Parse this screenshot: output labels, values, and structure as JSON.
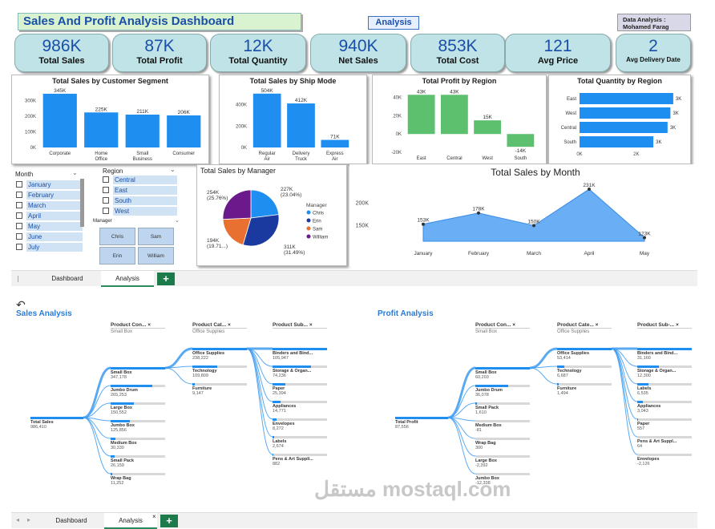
{
  "dashboard": {
    "title": "Sales And Profit  Analysis Dashboard",
    "nav_button": "Analysis",
    "author_line1": "Data Analysis :",
    "author_line2": "Mohamed Farag",
    "kpis": [
      {
        "value": "986K",
        "label": "Total Sales"
      },
      {
        "value": "87K",
        "label": "Total Profit"
      },
      {
        "value": "12K",
        "label": "Total Quantity"
      },
      {
        "value": "940K",
        "label": "Net Sales"
      },
      {
        "value": "853K",
        "label": "Total Cost"
      },
      {
        "value": "121",
        "label": "Avg  Price"
      },
      {
        "value": "2",
        "label": "Avg  Delivery Date"
      }
    ],
    "slicers": {
      "month_title": "Month",
      "months": [
        "January",
        "February",
        "March",
        "April",
        "May",
        "June",
        "July"
      ],
      "region_title": "Region",
      "regions": [
        "Central",
        "East",
        "South",
        "West"
      ],
      "manager_title": "Manager",
      "managers": [
        "Chris",
        "Sam",
        "Erin",
        "William"
      ]
    },
    "tabs": {
      "dashboard": "Dashboard",
      "analysis": "Analysis",
      "add": "+"
    }
  },
  "chart_data": [
    {
      "type": "bar",
      "title": "Total Sales by Customer Segment",
      "categories": [
        "Corporate",
        "Home Office",
        "Small Business",
        "Consumer"
      ],
      "values": [
        345,
        225,
        211,
        206
      ],
      "data_labels": [
        "345K",
        "225K",
        "211K",
        "206K"
      ],
      "ytick_labels": [
        "0K",
        "100K",
        "200K",
        "300K"
      ],
      "ylim": [
        0,
        350
      ]
    },
    {
      "type": "bar",
      "title": "Total Sales by Ship Mode",
      "categories": [
        "Regular Air",
        "Delivery Truck",
        "Express Air"
      ],
      "values": [
        504,
        412,
        71
      ],
      "data_labels": [
        "504K",
        "412K",
        "71K"
      ],
      "ytick_labels": [
        "0K",
        "200K",
        "400K"
      ],
      "ylim": [
        0,
        510
      ]
    },
    {
      "type": "bar",
      "title": "Total Profit by Region",
      "categories": [
        "East",
        "Central",
        "West",
        "South"
      ],
      "values": [
        43,
        43,
        15,
        -14
      ],
      "data_labels": [
        "43K",
        "43K",
        "15K",
        "-14K"
      ],
      "ytick_labels": [
        "-20K",
        "0K",
        "20K",
        "40K"
      ],
      "ylim": [
        -20,
        45
      ]
    },
    {
      "type": "bar",
      "orientation": "horizontal",
      "title": "Total Quantity by Region",
      "categories": [
        "East",
        "West",
        "Central",
        "South"
      ],
      "values": [
        3.3,
        3.2,
        3.1,
        2.6
      ],
      "data_labels": [
        "3K",
        "3K",
        "3K",
        "3K"
      ],
      "xtick_labels": [
        "0K",
        "2K"
      ],
      "xlim": [
        0,
        3.5
      ]
    },
    {
      "type": "pie",
      "title": "Total Sales by Manager",
      "legend_title": "Manager",
      "legend_position": "right",
      "labels": [
        "Chris",
        "Erin",
        "Sam",
        "William"
      ],
      "values": [
        227,
        311,
        194,
        254
      ],
      "slice_labels": [
        "227K (23.04%)",
        "311K (31.49%)",
        "194K (19.71...)",
        "254K (25.76%)"
      ],
      "colors": [
        "#1f8ef1",
        "#1a3aa0",
        "#e87030",
        "#6a1a8a"
      ]
    },
    {
      "type": "area",
      "title": "Total Sales by Month",
      "categories": [
        "January",
        "February",
        "March",
        "April",
        "May"
      ],
      "values": [
        153,
        178,
        150,
        231,
        123
      ],
      "data_labels": [
        "153K",
        "178K",
        "150K",
        "231K",
        "123K"
      ],
      "ytick_labels": [
        "150K",
        "200K"
      ],
      "ylim": [
        115,
        240
      ]
    }
  ],
  "analysis": {
    "sales_title": "Sales Analysis",
    "profit_title": "Profit Analysis",
    "sales_tree": {
      "root": {
        "label": "Total Sales",
        "value": "986,410"
      },
      "col1": {
        "header": "Product Con...",
        "sub": "Small Box"
      },
      "col2": {
        "header": "Product Cat...",
        "sub": "Office Supplies"
      },
      "col3": {
        "header": "Product Sub...",
        "sub": ""
      },
      "containers": [
        {
          "label": "Small Box",
          "value": "347,178",
          "pct": 1.0
        },
        {
          "label": "Jumbo Drum",
          "value": "265,253",
          "pct": 0.76
        },
        {
          "label": "Large Box",
          "value": "150,552",
          "pct": 0.43
        },
        {
          "label": "Jumbo Box",
          "value": "125,856",
          "pct": 0.36
        },
        {
          "label": "Medium Box",
          "value": "30,330",
          "pct": 0.09
        },
        {
          "label": "Small Pack",
          "value": "26,159",
          "pct": 0.08
        },
        {
          "label": "Wrap Bag",
          "value": "11,252",
          "pct": 0.03
        }
      ],
      "categories": [
        {
          "label": "Office Supplies",
          "value": "238,222",
          "pct": 1.0
        },
        {
          "label": "Technology",
          "value": "109,809",
          "pct": 0.46
        },
        {
          "label": "Furniture",
          "value": "9,147",
          "pct": 0.04
        }
      ],
      "subcategories": [
        {
          "label": "Binders and Bind...",
          "value": "105,947",
          "pct": 1.0
        },
        {
          "label": "Storage & Organ...",
          "value": "74,236",
          "pct": 0.7
        },
        {
          "label": "Paper",
          "value": "25,394",
          "pct": 0.24
        },
        {
          "label": "Appliances",
          "value": "14,771",
          "pct": 0.14
        },
        {
          "label": "Envelopes",
          "value": "8,272",
          "pct": 0.08
        },
        {
          "label": "Labels",
          "value": "2,674",
          "pct": 0.03
        },
        {
          "label": "Pens & Art Suppli...",
          "value": "882",
          "pct": 0.01
        }
      ]
    },
    "profit_tree": {
      "root": {
        "label": "Total Profit",
        "value": "87,556"
      },
      "col1": {
        "header": "Product Con...",
        "sub": "Small Box"
      },
      "col2": {
        "header": "Product Cate...",
        "sub": "Office Supplies"
      },
      "col3": {
        "header": "Product Sub-...",
        "sub": ""
      },
      "containers": [
        {
          "label": "Small Box",
          "value": "60,203",
          "pct": 1.0
        },
        {
          "label": "Jumbo Drum",
          "value": "36,078",
          "pct": 0.6
        },
        {
          "label": "Small Pack",
          "value": "1,610",
          "pct": 0.03
        },
        {
          "label": "Medium Box",
          "value": "-81",
          "pct": 0.0
        },
        {
          "label": "Wrap Bag",
          "value": "300",
          "pct": 0.0
        },
        {
          "label": "Large Box",
          "value": "-2,392",
          "pct": 0.0
        },
        {
          "label": "Jumbo Box",
          "value": "-12,338",
          "pct": 0.0
        }
      ],
      "categories": [
        {
          "label": "Office Supplies",
          "value": "53,414",
          "pct": 1.0
        },
        {
          "label": "Technology",
          "value": "6,687",
          "pct": 0.13
        },
        {
          "label": "Furniture",
          "value": "1,494",
          "pct": 0.03
        }
      ],
      "subcategories": [
        {
          "label": "Binders and Bind...",
          "value": "31,160",
          "pct": 1.0
        },
        {
          "label": "Storage & Organ...",
          "value": "12,300",
          "pct": 0.4
        },
        {
          "label": "Labels",
          "value": "6,535",
          "pct": 0.21
        },
        {
          "label": "Appliances",
          "value": "3,043",
          "pct": 0.1
        },
        {
          "label": "Paper",
          "value": "557",
          "pct": 0.02
        },
        {
          "label": "Pens & Art Suppl...",
          "value": "64",
          "pct": 0.0
        },
        {
          "label": "Envelopes",
          "value": "-2,126",
          "pct": 0.0
        }
      ]
    },
    "tabs": {
      "dashboard": "Dashboard",
      "analysis": "Analysis",
      "close": "×",
      "add": "+"
    },
    "watermark": "مستقل mostaql.com"
  }
}
